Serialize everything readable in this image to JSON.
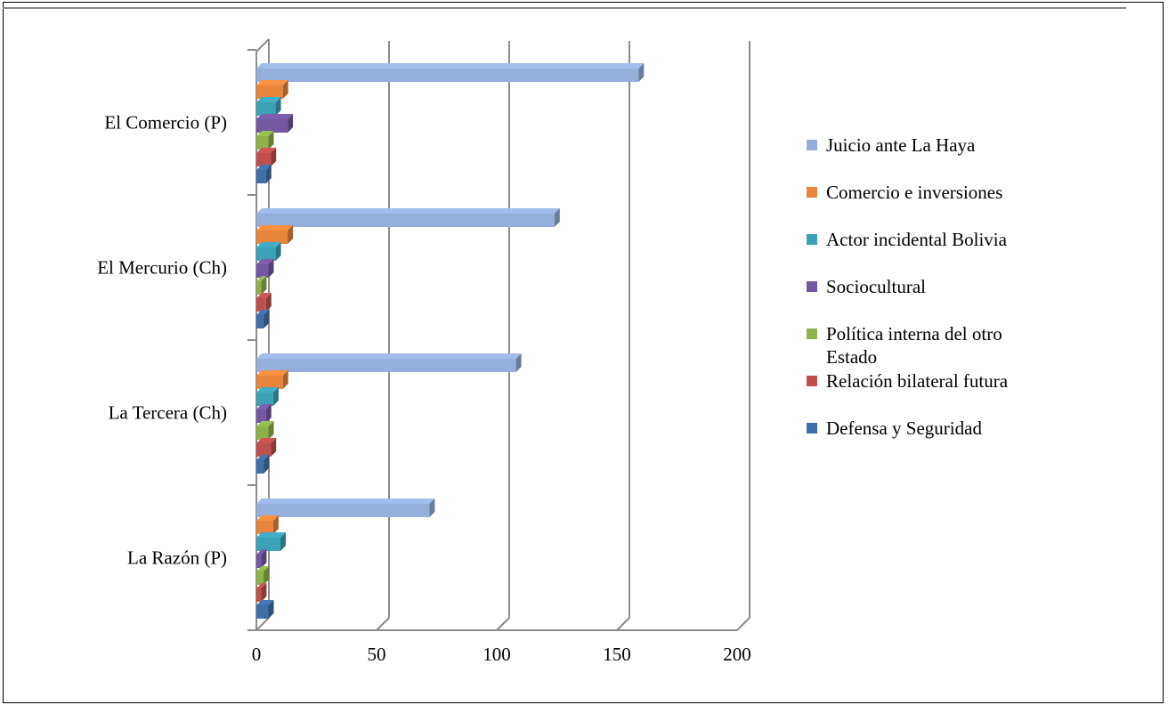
{
  "chart_data": {
    "type": "bar",
    "orientation": "horizontal",
    "style": "3d-clustered",
    "title": "",
    "xlabel": "",
    "ylabel": "",
    "xlim": [
      0,
      200
    ],
    "xticks": [
      0,
      50,
      100,
      150,
      200
    ],
    "grid": true,
    "legend_position": "right",
    "categories": [
      "La Razón (P)",
      "La Tercera (Ch)",
      "El Mercurio (Ch)",
      "El Comercio (P)"
    ],
    "series": [
      {
        "name": "Juicio ante La Haya",
        "color": "#95aedb",
        "values": [
          72,
          108,
          124,
          159
        ]
      },
      {
        "name": "Comercio e inversiones",
        "color": "#e8853b",
        "values": [
          7,
          11,
          13,
          11
        ]
      },
      {
        "name": "Actor incidental Bolivia",
        "color": "#3ba2b8",
        "values": [
          10,
          7,
          8,
          8
        ]
      },
      {
        "name": "Sociocultural",
        "color": "#7457a3",
        "values": [
          2,
          4,
          5,
          13
        ]
      },
      {
        "name": "Política interna del otro Estado",
        "legend_lines": [
          "Política interna del otro",
          "Estado"
        ],
        "color": "#8db24a",
        "values": [
          3,
          5,
          2,
          5
        ]
      },
      {
        "name": "Relación bilateral futura",
        "color": "#c0504d",
        "values": [
          2,
          6,
          4,
          6
        ]
      },
      {
        "name": "Defensa y Seguridad",
        "color": "#3f6ea8",
        "values": [
          5,
          3,
          3,
          4
        ]
      }
    ]
  }
}
